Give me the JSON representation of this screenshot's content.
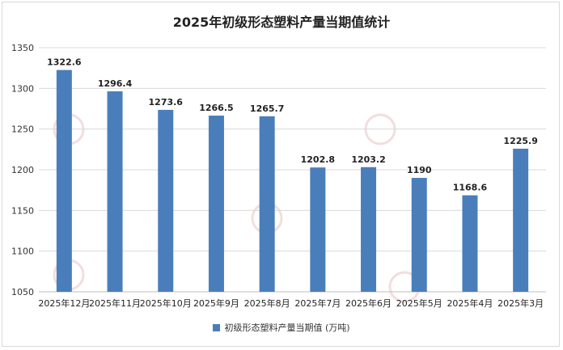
{
  "chart_data": {
    "type": "bar",
    "title": "2025年初级形态塑料产量当期值统计",
    "categories": [
      "2025年12月",
      "2025年11月",
      "2025年10月",
      "2025年9月",
      "2025年8月",
      "2025年7月",
      "2025年6月",
      "2025年5月",
      "2025年4月",
      "2025年3月"
    ],
    "series": [
      {
        "name": "初级形态塑料产量当期值 (万吨)",
        "values": [
          1322.6,
          1296.4,
          1273.6,
          1266.5,
          1265.7,
          1202.8,
          1203.2,
          1190,
          1168.6,
          1225.9
        ]
      }
    ],
    "ylim": [
      1050,
      1350
    ],
    "yticks": [
      1050,
      1100,
      1150,
      1200,
      1250,
      1300,
      1350
    ],
    "grid": true,
    "legend_position": "bottom",
    "bar_color": "#4a7ebb"
  }
}
